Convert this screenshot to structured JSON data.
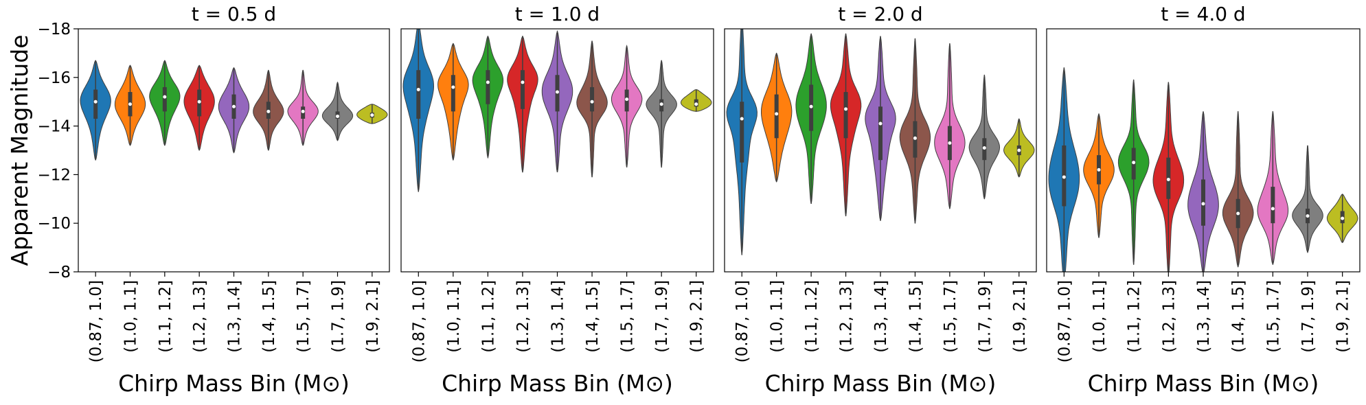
{
  "chart_data": [
    {
      "type": "violin",
      "title": "t = 0.5 d",
      "ylabel": "Apparent Magnitude",
      "xlabel": "Chirp Mass Bin (M⊙)",
      "categories": [
        "(0.87, 1.0]",
        "(1.0, 1.1]",
        "(1.1, 1.2]",
        "(1.2, 1.3]",
        "(1.3, 1.4]",
        "(1.4, 1.5]",
        "(1.5, 1.7]",
        "(1.7, 1.9]",
        "(1.9, 2.1]"
      ],
      "colors": [
        "#1f77b4",
        "#ff7f0e",
        "#2ca02c",
        "#d62728",
        "#9467bd",
        "#8c564b",
        "#e377c2",
        "#7f7f7f",
        "#bcbd22"
      ],
      "min": [
        -16.7,
        -16.5,
        -16.7,
        -16.5,
        -16.4,
        -16.3,
        -16.3,
        -15.8,
        -14.9
      ],
      "q1": [
        -15.5,
        -15.4,
        -15.6,
        -15.5,
        -15.3,
        -15.0,
        -14.8,
        -14.6,
        -14.55
      ],
      "median": [
        -15.0,
        -14.9,
        -15.2,
        -15.0,
        -14.8,
        -14.6,
        -14.6,
        -14.4,
        -14.45
      ],
      "q3": [
        -14.3,
        -14.4,
        -14.6,
        -14.4,
        -14.3,
        -14.3,
        -14.3,
        -14.3,
        -14.35
      ],
      "max": [
        -12.6,
        -13.2,
        -13.2,
        -13.0,
        -12.9,
        -13.0,
        -13.2,
        -13.4,
        -14.1
      ],
      "ylim": [
        -18,
        -8
      ],
      "inverted": true,
      "yticks": [
        {
          "value": -18,
          "label": "−18"
        },
        {
          "value": -16,
          "label": "−16"
        },
        {
          "value": -14,
          "label": "−14"
        },
        {
          "value": -12,
          "label": "−12"
        },
        {
          "value": -10,
          "label": "−10"
        },
        {
          "value": -8,
          "label": "−8"
        }
      ]
    },
    {
      "type": "violin",
      "title": "t = 1.0 d",
      "xlabel": "Chirp Mass Bin (M⊙)",
      "categories": [
        "(0.87, 1.0]",
        "(1.0, 1.1]",
        "(1.1, 1.2]",
        "(1.2, 1.3]",
        "(1.3, 1.4]",
        "(1.4, 1.5]",
        "(1.5, 1.7]",
        "(1.7, 1.9]",
        "(1.9, 2.1]"
      ],
      "colors": [
        "#1f77b4",
        "#ff7f0e",
        "#2ca02c",
        "#d62728",
        "#9467bd",
        "#8c564b",
        "#e377c2",
        "#7f7f7f",
        "#bcbd22"
      ],
      "min": [
        -18.3,
        -17.4,
        -17.7,
        -17.7,
        -17.9,
        -17.5,
        -17.3,
        -16.7,
        -15.5
      ],
      "q1": [
        -16.3,
        -16.1,
        -16.3,
        -16.3,
        -16.1,
        -15.6,
        -15.5,
        -15.1,
        -15.1
      ],
      "median": [
        -15.5,
        -15.6,
        -15.8,
        -15.8,
        -15.4,
        -15.0,
        -15.1,
        -14.9,
        -14.9
      ],
      "q3": [
        -14.3,
        -14.6,
        -14.9,
        -14.7,
        -14.6,
        -14.6,
        -14.6,
        -14.6,
        -14.8
      ],
      "max": [
        -11.3,
        -12.6,
        -12.7,
        -12.1,
        -12.1,
        -11.9,
        -12.3,
        -12.3,
        -14.6
      ],
      "ylim": [
        -18,
        -8
      ],
      "inverted": true
    },
    {
      "type": "violin",
      "title": "t = 2.0 d",
      "xlabel": "Chirp Mass Bin (M⊙)",
      "categories": [
        "(0.87, 1.0]",
        "(1.0, 1.1]",
        "(1.1, 1.2]",
        "(1.2, 1.3]",
        "(1.3, 1.4]",
        "(1.4, 1.5]",
        "(1.5, 1.7]",
        "(1.7, 1.9]",
        "(1.9, 2.1]"
      ],
      "colors": [
        "#1f77b4",
        "#ff7f0e",
        "#2ca02c",
        "#d62728",
        "#9467bd",
        "#8c564b",
        "#e377c2",
        "#7f7f7f",
        "#bcbd22"
      ],
      "min": [
        -18.5,
        -17.0,
        -17.8,
        -17.8,
        -17.7,
        -17.6,
        -17.4,
        -16.1,
        -14.3
      ],
      "q1": [
        -15.0,
        -15.3,
        -15.7,
        -15.4,
        -14.8,
        -14.2,
        -14.0,
        -13.5,
        -13.2
      ],
      "median": [
        -14.3,
        -14.5,
        -14.8,
        -14.7,
        -14.1,
        -13.5,
        -13.3,
        -13.1,
        -13.0
      ],
      "q3": [
        -12.5,
        -13.5,
        -13.8,
        -13.5,
        -12.6,
        -12.7,
        -12.6,
        -12.6,
        -12.8
      ],
      "max": [
        -8.7,
        -11.7,
        -10.8,
        -10.3,
        -10.1,
        -10.0,
        -10.6,
        -11.0,
        -11.9
      ],
      "ylim": [
        -18,
        -8
      ],
      "inverted": true
    },
    {
      "type": "violin",
      "title": "t = 4.0 d",
      "xlabel": "Chirp Mass Bin (M⊙)",
      "categories": [
        "(0.87, 1.0]",
        "(1.0, 1.1]",
        "(1.1, 1.2]",
        "(1.2, 1.3]",
        "(1.3, 1.4]",
        "(1.4, 1.5]",
        "(1.5, 1.7]",
        "(1.7, 1.9]",
        "(1.9, 2.1]"
      ],
      "colors": [
        "#1f77b4",
        "#ff7f0e",
        "#2ca02c",
        "#d62728",
        "#9467bd",
        "#8c564b",
        "#e377c2",
        "#7f7f7f",
        "#bcbd22"
      ],
      "min": [
        -16.4,
        -14.5,
        -15.9,
        -15.8,
        -14.6,
        -14.6,
        -14.6,
        -13.2,
        -11.2
      ],
      "q1": [
        -13.2,
        -12.8,
        -13.1,
        -12.7,
        -11.8,
        -11.0,
        -11.5,
        -10.6,
        -10.5
      ],
      "median": [
        -11.9,
        -12.2,
        -12.5,
        -11.8,
        -10.8,
        -10.4,
        -10.6,
        -10.3,
        -10.2
      ],
      "q3": [
        -10.7,
        -11.6,
        -11.8,
        -11.0,
        -9.9,
        -9.8,
        -10.0,
        -10.0,
        -10.0
      ],
      "max": [
        -7.5,
        -9.4,
        -8.3,
        -7.8,
        -7.9,
        -8.2,
        -8.3,
        -8.8,
        -9.2
      ],
      "ylim": [
        -18,
        -8
      ],
      "inverted": true
    }
  ]
}
